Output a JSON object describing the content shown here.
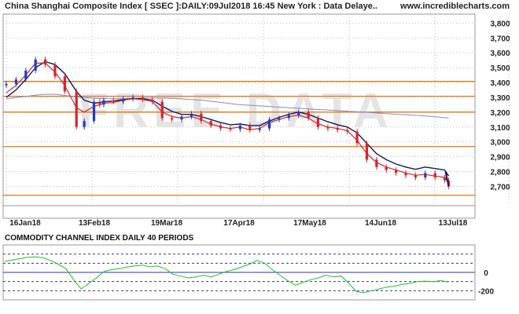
{
  "header": {
    "title": "China Shanghai Composite Index [ SSEC ]:DAILY:09Jul2018 16:45 New York : Data Delaye..",
    "site": "www.incrediblecharts.com",
    "watermark": "FREE DATA"
  },
  "colors": {
    "up_candle": "#1f3fbf",
    "down_candle": "#d8232a",
    "ma_short": "#d8232a",
    "ma_long": "#0a1a6a",
    "ma_very_long": "#8888c8",
    "horizontal_lines": "#e07a10",
    "cci_line": "#1fbf1f",
    "cci_bands": "#3333aa"
  },
  "chart_data": [
    {
      "type": "candlestick",
      "title": "China Shanghai Composite Index [ SSEC ]:DAILY:09Jul2018 16:45 New York : Data Delaye..",
      "x_tick_labels": [
        "16Jan18",
        "13Feb18",
        "19Mar18",
        "17Apr18",
        "17May18",
        "14Jun18",
        "13Jul18"
      ],
      "y_ticks": [
        2700,
        2800,
        2900,
        3000,
        3100,
        3200,
        3300,
        3400,
        3500,
        3600,
        3700,
        3800
      ],
      "y_tick_labels": [
        "2,700",
        "2,800",
        "2,900",
        "3,000",
        "3,100",
        "3,200",
        "3,300",
        "3,400",
        "3,500",
        "3,600",
        "3,700",
        "3,800"
      ],
      "ylim": [
        2570,
        3860
      ],
      "grid": true,
      "horizontal_levels": [
        3407,
        3307,
        3200,
        2968,
        2640
      ],
      "series": [
        {
          "kind": "close",
          "x": [
            0,
            5,
            10,
            15,
            20,
            25,
            30,
            36,
            40,
            45,
            48,
            50,
            55,
            60,
            65,
            70,
            75,
            80,
            85,
            90,
            95,
            100,
            105,
            110,
            115,
            120,
            125,
            130,
            135,
            140,
            145,
            150,
            155,
            160,
            165,
            170,
            175,
            180,
            185,
            190,
            195,
            200,
            205,
            210,
            215,
            220,
            225,
            227
          ],
          "values": [
            3390,
            3420,
            3480,
            3555,
            3520,
            3440,
            3340,
            3100,
            3140,
            3270,
            3250,
            3280,
            3270,
            3290,
            3300,
            3285,
            3270,
            3160,
            3150,
            3170,
            3190,
            3140,
            3110,
            3090,
            3085,
            3110,
            3080,
            3090,
            3150,
            3160,
            3180,
            3200,
            3160,
            3100,
            3090,
            3080,
            3070,
            2990,
            2880,
            2830,
            2810,
            2790,
            2775,
            2760,
            2790,
            2760,
            2740,
            2700
          ]
        },
        {
          "kind": "ma_short",
          "values": [
            3330,
            3380,
            3450,
            3530,
            3530,
            3470,
            3380,
            3230,
            3200,
            3240,
            3250,
            3260,
            3265,
            3280,
            3290,
            3285,
            3270,
            3200,
            3170,
            3160,
            3170,
            3150,
            3120,
            3100,
            3090,
            3100,
            3080,
            3090,
            3130,
            3150,
            3170,
            3180,
            3160,
            3120,
            3100,
            3090,
            3075,
            3010,
            2920,
            2860,
            2830,
            2810,
            2790,
            2775,
            2780,
            2770,
            2760,
            2720
          ]
        },
        {
          "kind": "ma_long",
          "values": [
            3300,
            3350,
            3420,
            3500,
            3540,
            3520,
            3460,
            3340,
            3280,
            3260,
            3265,
            3270,
            3275,
            3285,
            3290,
            3290,
            3280,
            3240,
            3205,
            3185,
            3185,
            3170,
            3150,
            3130,
            3115,
            3120,
            3110,
            3110,
            3140,
            3165,
            3185,
            3200,
            3185,
            3160,
            3135,
            3115,
            3100,
            3060,
            2990,
            2920,
            2880,
            2850,
            2830,
            2815,
            2830,
            2820,
            2810,
            2770
          ]
        },
        {
          "kind": "ma_very_long",
          "values": [
            3290,
            3300,
            3310,
            3320,
            3320,
            3310,
            3300,
            3295,
            3290,
            3290,
            3290,
            3295,
            3295,
            3295,
            3290,
            3285,
            3280,
            3270,
            3260,
            3250,
            3245,
            3240,
            3235,
            3230,
            3225,
            3220,
            3215,
            3210,
            3205,
            3200,
            3195,
            3190,
            3185,
            3180,
            3175,
            3168,
            3160
          ]
        }
      ]
    },
    {
      "type": "line",
      "title": "COMMODITY CHANNEL INDEX DAILY 40 PERIODS",
      "y_ticks": [
        0,
        -200
      ],
      "y_tick_labels": [
        "0",
        "-200"
      ],
      "ylim": [
        -300,
        300
      ],
      "band_levels": [
        200,
        100,
        -100,
        -200
      ],
      "series": [
        {
          "name": "CCI",
          "values": [
            120,
            135,
            150,
            165,
            170,
            160,
            130,
            90,
            40,
            -80,
            -180,
            -120,
            -60,
            10,
            30,
            40,
            60,
            70,
            80,
            60,
            70,
            40,
            -20,
            -40,
            -60,
            -50,
            -30,
            -50,
            -20,
            10,
            30,
            60,
            90,
            130,
            100,
            30,
            -30,
            -90,
            -140,
            -110,
            -80,
            -60,
            -30,
            -50,
            -40,
            -120,
            -210,
            -220,
            -200,
            -180,
            -160,
            -150,
            -130,
            -120,
            -100,
            -95,
            -100,
            -90,
            -105
          ]
        }
      ]
    }
  ]
}
